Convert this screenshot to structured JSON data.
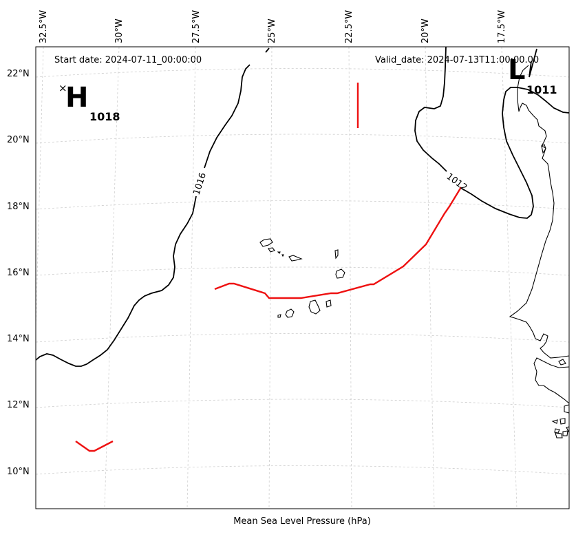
{
  "header": {
    "start_date": "Start date: 2024-07-11_00:00:00",
    "valid_date": "Valid_date: 2024-07-13T11:00:00.00"
  },
  "footer": {
    "caption": "Mean Sea Level Pressure (hPa)"
  },
  "axes": {
    "lon_labels": [
      "32.5°W",
      "30°W",
      "27.5°W",
      "25°W",
      "22.5°W",
      "20°W",
      "17.5°W"
    ],
    "lat_labels": [
      "22°N",
      "20°N",
      "18°N",
      "16°N",
      "14°N",
      "12°N",
      "10°N"
    ]
  },
  "isobars": [
    {
      "label": "1016"
    },
    {
      "label": "1012"
    }
  ],
  "pressure_systems": [
    {
      "type": "H",
      "value": "1018",
      "marker": "×"
    },
    {
      "type": "L",
      "value": "1011"
    }
  ],
  "colors": {
    "isobar": "#000000",
    "highlight": "#ee1111",
    "grid": "#cfcfcf"
  }
}
